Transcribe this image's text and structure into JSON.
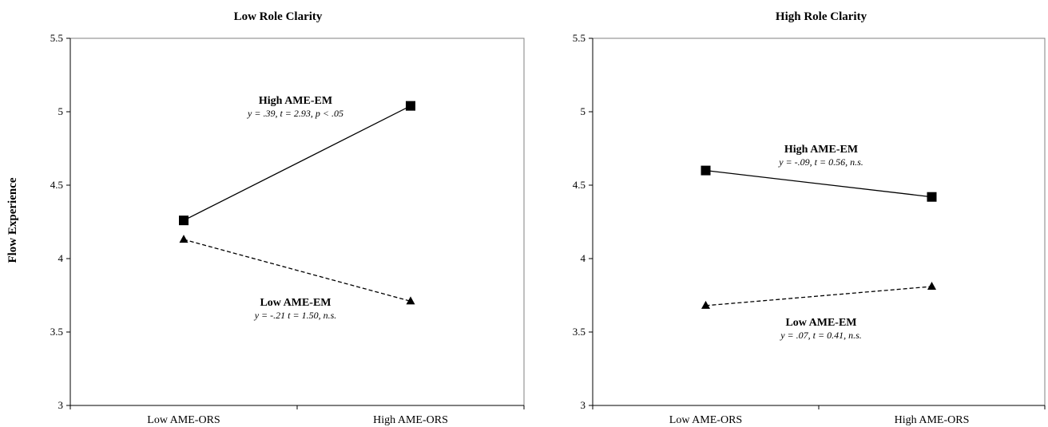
{
  "chart_data": [
    {
      "type": "line",
      "title": "Low Role Clarity",
      "ylabel": "Flow Experience",
      "xlabel": "",
      "categories": [
        "Low AME-ORS",
        "High AME-ORS"
      ],
      "ylim": [
        3,
        5.5
      ],
      "yticks": [
        "3",
        "3.5",
        "4",
        "4.5",
        "5",
        "5.5"
      ],
      "series": [
        {
          "name": "High AME-EM",
          "stat": "y = .39, t = 2.93, p < .05",
          "values": [
            4.26,
            5.04
          ],
          "marker": "square",
          "line": "solid"
        },
        {
          "name": "Low AME-EM",
          "stat": "y = -.21 t = 1.50, n.s.",
          "values": [
            4.13,
            3.71
          ],
          "marker": "triangle",
          "line": "dashed"
        }
      ]
    },
    {
      "type": "line",
      "title": "High Role Clarity",
      "ylabel": "",
      "xlabel": "",
      "categories": [
        "Low AME-ORS",
        "High AME-ORS"
      ],
      "ylim": [
        3,
        5.5
      ],
      "yticks": [
        "3",
        "3.5",
        "4",
        "4.5",
        "5",
        "5.5"
      ],
      "series": [
        {
          "name": "High AME-EM",
          "stat": "y = -.09, t = 0.56, n.s.",
          "values": [
            4.6,
            4.42
          ],
          "marker": "square",
          "line": "solid"
        },
        {
          "name": "Low AME-EM",
          "stat": "y = .07, t = 0.41, n.s.",
          "values": [
            3.68,
            3.81
          ],
          "marker": "triangle",
          "line": "dashed"
        }
      ]
    }
  ]
}
